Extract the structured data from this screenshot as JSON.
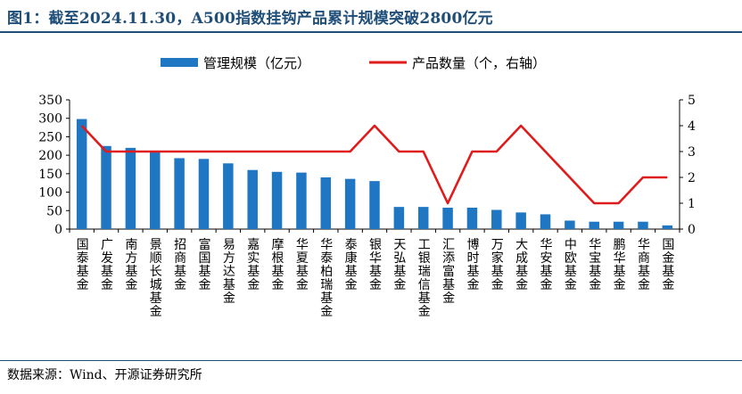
{
  "title": "图1：截至2024.11.30，A500指数挂钩产品累计规模突破2800亿元",
  "source": "数据来源：Wind、开源证券研究所",
  "colors": {
    "bar": "#1f77c4",
    "line": "#e01b1b",
    "title": "#1f4e79"
  },
  "chart_data": {
    "type": "bar",
    "categories": [
      "国泰基金",
      "广发基金",
      "南方基金",
      "景顺长城基金",
      "招商基金",
      "富国基金",
      "易方达基金",
      "嘉实基金",
      "摩根基金",
      "华夏基金",
      "华泰柏瑞基金",
      "泰康基金",
      "银华基金",
      "天弘基金",
      "工银瑞信基金",
      "汇添富基金",
      "博时基金",
      "万家基金",
      "大成基金",
      "华安基金",
      "中欧基金",
      "华宝基金",
      "鹏华基金",
      "华商基金",
      "国金基金"
    ],
    "series": [
      {
        "name": "管理规模（亿元）",
        "type": "bar",
        "axis": "left",
        "values": [
          298,
          225,
          220,
          210,
          192,
          190,
          178,
          160,
          155,
          153,
          140,
          136,
          130,
          60,
          60,
          58,
          58,
          52,
          45,
          40,
          23,
          20,
          20,
          20,
          10
        ]
      },
      {
        "name": "产品数量（个，右轴）",
        "type": "line",
        "axis": "right",
        "values": [
          4,
          3,
          3,
          3,
          3,
          3,
          3,
          3,
          3,
          3,
          3,
          3,
          4,
          3,
          3,
          1,
          3,
          3,
          4,
          3,
          2,
          1,
          1,
          2,
          2
        ]
      }
    ],
    "y_left": {
      "min": 0,
      "max": 350,
      "ticks": [
        "0",
        "50",
        "100",
        "150",
        "200",
        "250",
        "300",
        "350"
      ]
    },
    "y_right": {
      "min": 0,
      "max": 5,
      "ticks": [
        "0",
        "1",
        "2",
        "3",
        "4",
        "5"
      ]
    },
    "legend": {
      "position": "top",
      "items": [
        "管理规模（亿元）",
        "产品数量（个，右轴）"
      ]
    }
  }
}
